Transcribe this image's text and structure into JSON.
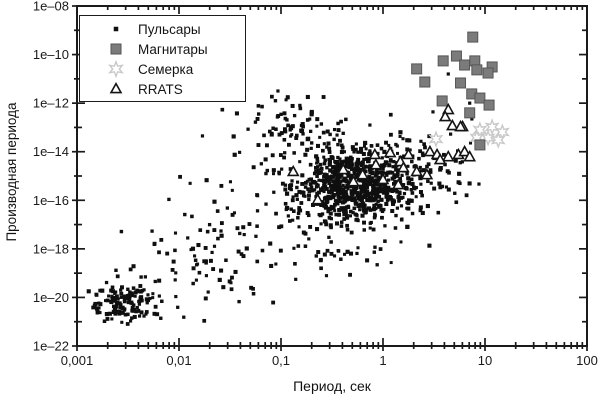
{
  "legend": {
    "items": [
      {
        "label": "Пульсары",
        "marker": "square-small"
      },
      {
        "label": "Магнитары",
        "marker": "square"
      },
      {
        "label": "Семерка",
        "marker": "star6"
      },
      {
        "label": "RRATS",
        "marker": "triangle"
      }
    ]
  },
  "chart_data": {
    "type": "scatter",
    "title": "",
    "xlabel": "Период, сек",
    "ylabel": "Производная периода",
    "x_scale": "log",
    "y_scale": "log",
    "xlim": [
      0.001,
      100
    ],
    "ylim": [
      1e-22,
      1e-08
    ],
    "grid": false,
    "legend_position": "upper-left",
    "x_ticks": [
      {
        "label": "0,001",
        "log": -3
      },
      {
        "label": "0,01",
        "log": -2
      },
      {
        "label": "0,1",
        "log": -1
      },
      {
        "label": "1",
        "log": 0
      },
      {
        "label": "10",
        "log": 1
      },
      {
        "label": "100",
        "log": 2
      }
    ],
    "y_ticks": [
      {
        "label": "1e–08",
        "log": -8
      },
      {
        "label": "1e–10",
        "log": -10
      },
      {
        "label": "1e–12",
        "log": -12
      },
      {
        "label": "1e–14",
        "log": -14
      },
      {
        "label": "1e–16",
        "log": -16
      },
      {
        "label": "1e–18",
        "log": -18
      },
      {
        "label": "1e–20",
        "log": -20
      },
      {
        "label": "1e–22",
        "log": -22
      }
    ],
    "x_minor_mantissas": [
      2,
      3,
      4,
      5,
      6,
      7,
      8,
      9
    ],
    "y_minor_decades_step": 2,
    "colors": {
      "pulsar": "#0f0f0f",
      "magnetar_fill": "#7b7b7b",
      "magnetar_edge": "#565656",
      "seven_stroke": "#c9c9c9",
      "rrat_stroke": "#141414",
      "axis": "#1a1a1a"
    },
    "series": [
      {
        "name": "Пульсары",
        "marker": "square-small",
        "points_are": "log10(P), log10(Pdot)",
        "note": "dense population statistically reconstructed from clusters",
        "clusters": [
          {
            "n": 130,
            "cx": -2.52,
            "cy": -20.25,
            "sx": 0.16,
            "sy": 0.38,
            "clip": [
              -2.9,
              -2.0,
              -21.3,
              -19.2
            ]
          },
          {
            "n": 75,
            "cx": -1.8,
            "cy": -18.9,
            "sx": 0.55,
            "sy": 0.9,
            "clip": [
              -2.85,
              -0.95,
              -21.0,
              -16.6
            ]
          },
          {
            "n": 45,
            "cx": -1.35,
            "cy": -16.5,
            "sx": 0.45,
            "sy": 1.0,
            "clip": [
              -2.3,
              -0.7,
              -18.8,
              -14.0
            ]
          },
          {
            "n": 600,
            "cx": -0.27,
            "cy": -15.35,
            "sx": 0.27,
            "sy": 0.75,
            "clip": [
              -1.05,
              0.75,
              -17.6,
              -13.1
            ]
          },
          {
            "n": 280,
            "cx": -0.18,
            "cy": -15.1,
            "sx": 0.52,
            "sy": 1.15,
            "clip": [
              -1.5,
              0.95,
              -18.5,
              -12.2
            ]
          },
          {
            "n": 70,
            "cx": -0.95,
            "cy": -12.85,
            "sx": 0.26,
            "sy": 0.55,
            "clip": [
              -1.6,
              -0.38,
              -14.2,
              -11.55
            ]
          },
          {
            "n": 30,
            "cx": -0.35,
            "cy": -18.2,
            "sx": 0.5,
            "sy": 0.55,
            "clip": [
              -1.3,
              0.8,
              -19.7,
              -17.3
            ]
          },
          {
            "n": 25,
            "cx": 0.55,
            "cy": -14.6,
            "sx": 0.35,
            "sy": 0.9,
            "clip": [
              0.1,
              1.15,
              -16.6,
              -12.5
            ]
          }
        ],
        "extra_points": [
          [
            -1.77,
            -13.35
          ],
          [
            0.64,
            -10.8
          ],
          [
            0.85,
            -12.0
          ],
          [
            -1.03,
            -11.5
          ],
          [
            0.49,
            -12.36
          ]
        ]
      },
      {
        "name": "Магнитары",
        "marker": "square",
        "points_are": "log10(P), log10(Pdot)",
        "points": [
          [
            0.88,
            -9.28
          ],
          [
            0.59,
            -10.26
          ],
          [
            0.72,
            -10.06
          ],
          [
            0.8,
            -10.43
          ],
          [
            0.9,
            -10.26
          ],
          [
            0.92,
            -10.63
          ],
          [
            1.07,
            -10.51
          ],
          [
            1.03,
            -10.76
          ],
          [
            0.33,
            -10.59
          ],
          [
            0.41,
            -11.13
          ],
          [
            0.76,
            -11.17
          ],
          [
            0.87,
            -11.62
          ],
          [
            0.95,
            -11.79
          ],
          [
            0.58,
            -11.91
          ],
          [
            1.04,
            -12.08
          ],
          [
            0.85,
            -12.4
          ],
          [
            0.95,
            -13.72
          ]
        ]
      },
      {
        "name": "Семерка",
        "marker": "star6",
        "points_are": "log10(P), log10(Pdot)",
        "points": [
          [
            0.95,
            -13.1
          ],
          [
            1.07,
            -12.98
          ],
          [
            1.17,
            -13.19
          ],
          [
            0.92,
            -13.43
          ],
          [
            1.03,
            -13.43
          ],
          [
            1.13,
            -13.52
          ],
          [
            0.52,
            -13.48
          ]
        ]
      },
      {
        "name": "RRATS",
        "marker": "triangle",
        "points_are": "log10(P), log10(Pdot)",
        "points": [
          [
            0.64,
            -12.28
          ],
          [
            0.68,
            -12.94
          ],
          [
            0.78,
            -12.98
          ],
          [
            0.61,
            -12.57
          ],
          [
            0.76,
            -12.98
          ],
          [
            0.46,
            -14.01
          ],
          [
            0.53,
            -14.13
          ],
          [
            0.64,
            -14.22
          ],
          [
            0.74,
            -14.13
          ],
          [
            0.8,
            -14.01
          ],
          [
            0.85,
            -14.22
          ],
          [
            -0.08,
            -14.13
          ],
          [
            0.07,
            -14.05
          ],
          [
            0.17,
            -14.42
          ],
          [
            -0.07,
            -14.55
          ],
          [
            0.33,
            -14.83
          ],
          [
            0.2,
            -14.67
          ],
          [
            0.43,
            -14.96
          ],
          [
            -0.2,
            -14.96
          ],
          [
            0.0,
            -15.16
          ],
          [
            0.15,
            -15.37
          ],
          [
            -0.39,
            -14.75
          ],
          [
            -0.29,
            -15.25
          ],
          [
            -0.64,
            -15.99
          ],
          [
            0.25,
            -14.13
          ],
          [
            0.56,
            -14.34
          ],
          [
            -0.88,
            -14.83
          ]
        ]
      }
    ]
  }
}
